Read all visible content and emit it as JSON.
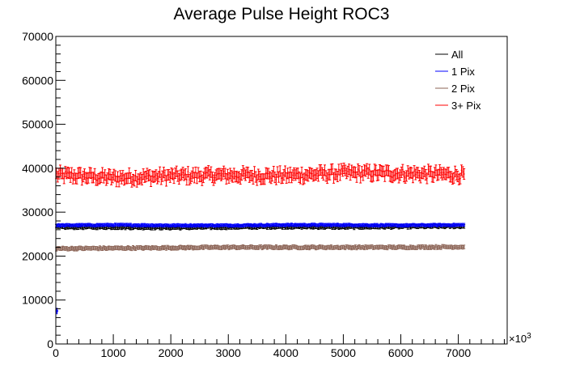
{
  "chart_data": {
    "type": "scatter",
    "title": "Average Pulse Height ROC3",
    "xlabel": "",
    "ylabel": "",
    "x_exponent_label": "×10^3",
    "xlim": [
      0,
      7850
    ],
    "ylim": [
      0,
      70000
    ],
    "x_ticks": [
      0,
      1000,
      2000,
      3000,
      4000,
      5000,
      6000,
      7000
    ],
    "y_ticks": [
      0,
      10000,
      20000,
      30000,
      40000,
      50000,
      60000,
      70000
    ],
    "legend": {
      "placement": "top-right",
      "entries": [
        "All",
        "1 Pix",
        "2 Pix",
        "3+ Pix"
      ]
    },
    "series": [
      {
        "name": "3+ Pix",
        "color": "#ff0000",
        "x": [
          0,
          1000,
          2000,
          3000,
          4000,
          5000,
          6000,
          7000
        ],
        "y": [
          38500,
          37800,
          38200,
          38400,
          38300,
          38900,
          38800,
          38500
        ],
        "y_err": 1200,
        "x_range": [
          10,
          7100
        ]
      },
      {
        "name": "All",
        "color": "#000000",
        "x": [
          0,
          1000,
          2000,
          3000,
          4000,
          5000,
          6000,
          7000
        ],
        "y": [
          26600,
          26600,
          26500,
          26600,
          26700,
          26600,
          26700,
          26800
        ],
        "y_err": 400,
        "x_range": [
          10,
          7100
        ]
      },
      {
        "name": "1 Pix",
        "color": "#0000ff",
        "x": [
          0,
          1000,
          2000,
          3000,
          4000,
          5000,
          6000,
          7000
        ],
        "y": [
          27000,
          27100,
          27000,
          27000,
          27100,
          27100,
          27000,
          27100
        ],
        "y_err": 300,
        "x_range": [
          10,
          7100
        ],
        "outlier": {
          "x": 20,
          "y": 7500
        }
      },
      {
        "name": "2 Pix",
        "color": "#8b6355",
        "x": [
          0,
          1000,
          2000,
          3000,
          4000,
          5000,
          6000,
          7000
        ],
        "y": [
          21700,
          21800,
          21900,
          22000,
          22000,
          22000,
          22000,
          22100
        ],
        "y_err": 400,
        "x_range": [
          10,
          7100
        ]
      }
    ],
    "grid": false
  }
}
